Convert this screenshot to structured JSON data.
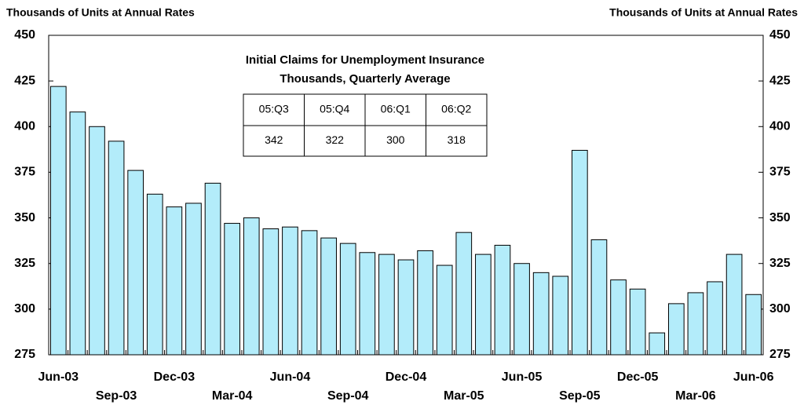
{
  "chart_data": {
    "type": "bar",
    "ylabel": "Thousands of Units at Annual Rates",
    "y2label": "Thousands of Units at Annual Rates",
    "categories": [
      "Jun-03",
      null,
      null,
      "Sep-03",
      null,
      null,
      "Dec-03",
      null,
      null,
      "Mar-04",
      null,
      null,
      "Jun-04",
      null,
      null,
      "Sep-04",
      null,
      null,
      "Dec-04",
      null,
      null,
      "Mar-05",
      null,
      null,
      "Jun-05",
      null,
      null,
      "Sep-05",
      null,
      null,
      "Dec-05",
      null,
      null,
      "Mar-06",
      null,
      null,
      "Jun-06"
    ],
    "values": [
      422,
      408,
      400,
      392,
      376,
      363,
      356,
      358,
      369,
      347,
      350,
      344,
      345,
      343,
      339,
      336,
      331,
      330,
      327,
      332,
      324,
      342,
      330,
      335,
      325,
      320,
      318,
      387,
      338,
      316,
      311,
      287,
      303,
      309,
      315,
      330,
      308
    ],
    "color": "#b3ecfa",
    "ylim": [
      275,
      450
    ],
    "yticks": [
      275,
      300,
      325,
      350,
      375,
      400,
      425,
      450
    ],
    "y2lim": [
      275,
      450
    ],
    "y2ticks": [
      275,
      300,
      325,
      350,
      375,
      400,
      425,
      450
    ],
    "inset": {
      "title": [
        "Initial Claims for Unemployment Insurance",
        "Thousands, Quarterly Average"
      ],
      "headers": [
        "05:Q3",
        "05:Q4",
        "06:Q1",
        "06:Q2"
      ],
      "values": [
        342,
        322,
        300,
        318
      ]
    }
  }
}
